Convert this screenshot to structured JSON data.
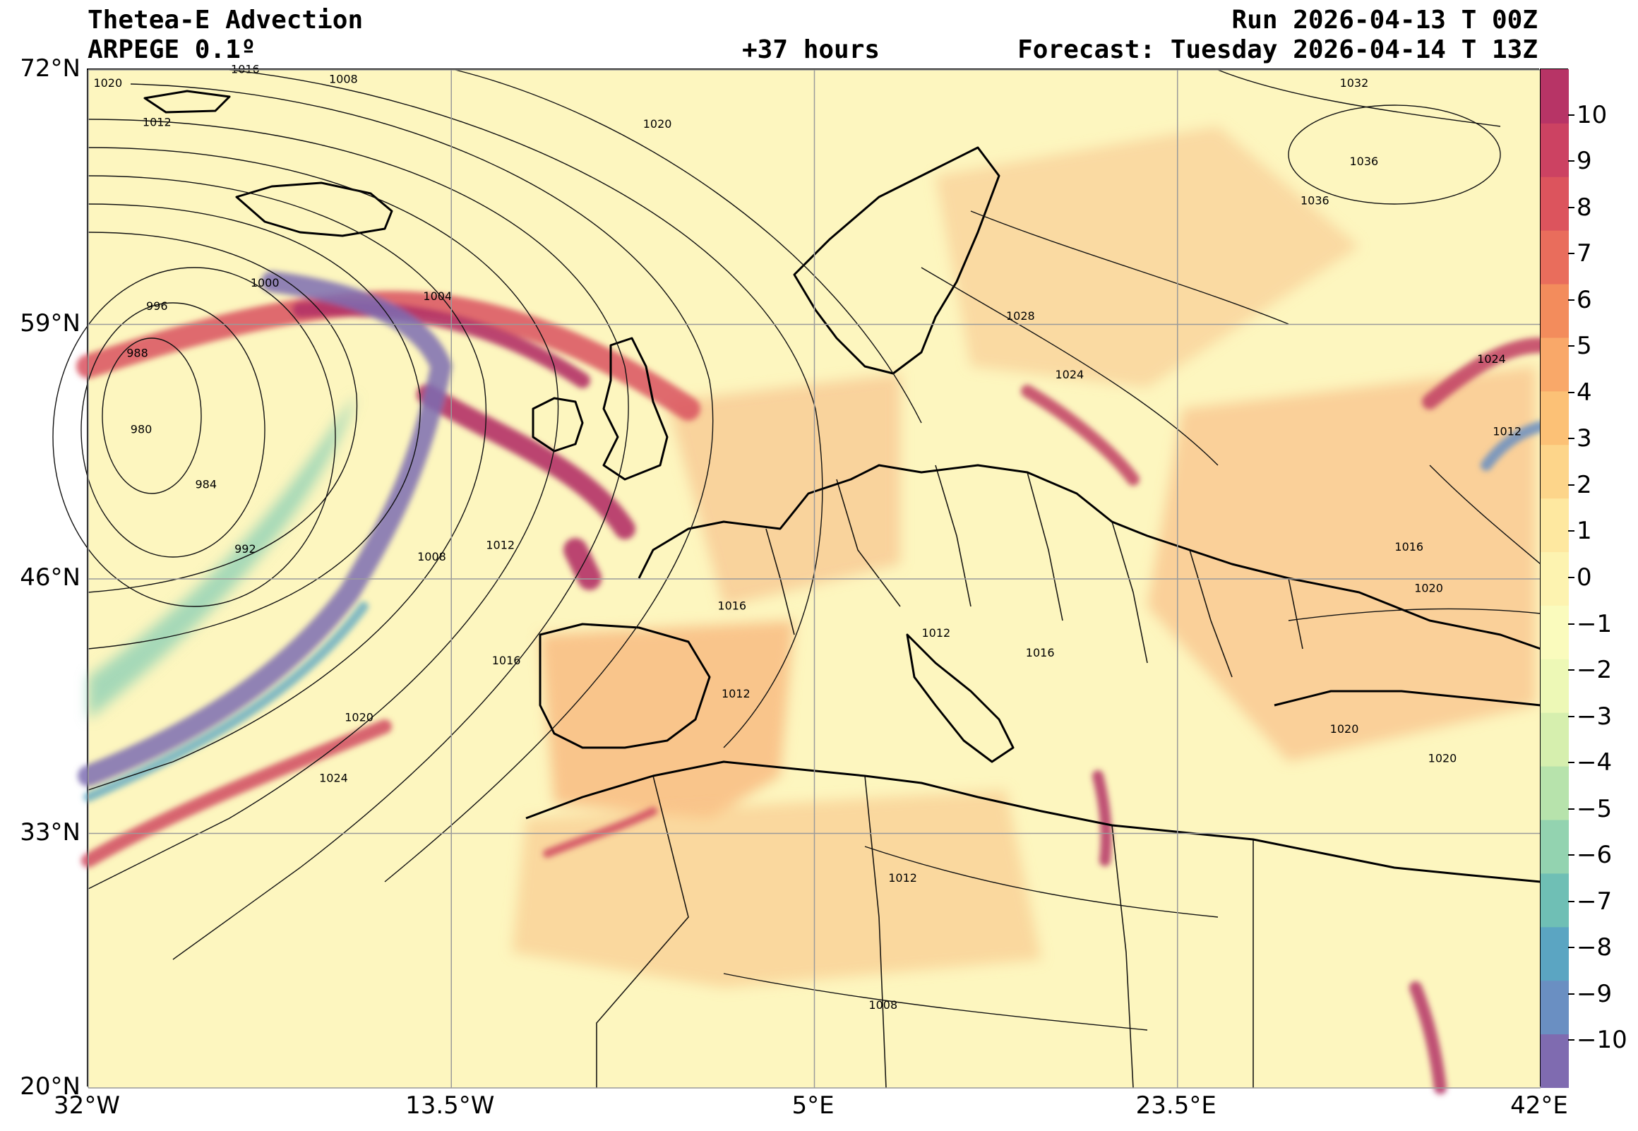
{
  "header": {
    "title": "Thetea-E Advection",
    "model": "ARPEGE 0.1º",
    "lead_time": "+37 hours",
    "run": "Run 2026-04-13 T 00Z",
    "forecast": "Forecast: Tuesday 2026-04-14 T 13Z"
  },
  "map": {
    "lon_range": [
      -32,
      42
    ],
    "lat_range": [
      20,
      72
    ],
    "lat_ticks": [
      {
        "value": 72,
        "label": "72°N"
      },
      {
        "value": 59,
        "label": "59°N"
      },
      {
        "value": 46,
        "label": "46°N"
      },
      {
        "value": 33,
        "label": "33°N"
      },
      {
        "value": 20,
        "label": "20°N"
      }
    ],
    "lon_ticks": [
      {
        "value": -32,
        "label": "32°W"
      },
      {
        "value": -13.5,
        "label": "13.5°W"
      },
      {
        "value": 5,
        "label": "5°E"
      },
      {
        "value": 23.5,
        "label": "23.5°E"
      },
      {
        "value": 42,
        "label": "42°E"
      }
    ],
    "grid": true,
    "isobar_labels": [
      {
        "text": "1020",
        "lon": -31,
        "lat": 71.3
      },
      {
        "text": "1016",
        "lon": -24,
        "lat": 72
      },
      {
        "text": "1008",
        "lon": -19,
        "lat": 71.5
      },
      {
        "text": "1012",
        "lon": -28.5,
        "lat": 69.3
      },
      {
        "text": "1020",
        "lon": -3,
        "lat": 69.2
      },
      {
        "text": "1032",
        "lon": 32.5,
        "lat": 71.3
      },
      {
        "text": "1036",
        "lon": 33,
        "lat": 67.3
      },
      {
        "text": "1036",
        "lon": 30.5,
        "lat": 65.3
      },
      {
        "text": "1000",
        "lon": -23,
        "lat": 61.1
      },
      {
        "text": "996",
        "lon": -28.5,
        "lat": 59.9
      },
      {
        "text": "1004",
        "lon": -14.2,
        "lat": 60.4
      },
      {
        "text": "1028",
        "lon": 15.5,
        "lat": 59.4
      },
      {
        "text": "988",
        "lon": -29.5,
        "lat": 57.5
      },
      {
        "text": "980",
        "lon": -29.3,
        "lat": 53.6
      },
      {
        "text": "984",
        "lon": -26,
        "lat": 50.8
      },
      {
        "text": "1024",
        "lon": 18,
        "lat": 56.4
      },
      {
        "text": "1024",
        "lon": 39.5,
        "lat": 57.2
      },
      {
        "text": "1012",
        "lon": 40.3,
        "lat": 53.5
      },
      {
        "text": "992",
        "lon": -24,
        "lat": 47.5
      },
      {
        "text": "1008",
        "lon": -14.5,
        "lat": 47.1
      },
      {
        "text": "1012",
        "lon": -11,
        "lat": 47.7
      },
      {
        "text": "1016",
        "lon": 35.3,
        "lat": 47.6
      },
      {
        "text": "1020",
        "lon": 36.3,
        "lat": 45.5
      },
      {
        "text": "1012",
        "lon": 11.2,
        "lat": 43.2
      },
      {
        "text": "1016",
        "lon": 16.5,
        "lat": 42.2
      },
      {
        "text": "1016",
        "lon": -10.7,
        "lat": 41.8
      },
      {
        "text": "1012",
        "lon": 1,
        "lat": 40.1
      },
      {
        "text": "1016",
        "lon": 0.8,
        "lat": 44.6
      },
      {
        "text": "1020",
        "lon": -18.2,
        "lat": 38.9
      },
      {
        "text": "1020",
        "lon": 32,
        "lat": 38.3
      },
      {
        "text": "1020",
        "lon": 37,
        "lat": 36.8
      },
      {
        "text": "1024",
        "lon": -19.5,
        "lat": 35.8
      },
      {
        "text": "1012",
        "lon": 9.5,
        "lat": 30.7
      },
      {
        "text": "1008",
        "lon": 8.5,
        "lat": 24.2
      }
    ]
  },
  "colorbar": {
    "range": [
      -11,
      11
    ],
    "labels": [
      "10",
      "9",
      "8",
      "7",
      "6",
      "5",
      "4",
      "3",
      "2",
      "1",
      "0",
      "−1",
      "−2",
      "−3",
      "−4",
      "−5",
      "−6",
      "−7",
      "−8",
      "−9",
      "−10"
    ],
    "label_values": [
      10,
      9,
      8,
      7,
      6,
      5,
      4,
      3,
      2,
      1,
      0,
      -1,
      -2,
      -3,
      -4,
      -5,
      -6,
      -7,
      -8,
      -9,
      -10
    ],
    "colors": [
      "#7f6bb0",
      "#6a8fc2",
      "#5ba5c2",
      "#6fbfb5",
      "#93d3b0",
      "#b7e3ac",
      "#d6efae",
      "#edf8b6",
      "#fafbbd",
      "#fdf3b0",
      "#fee8a0",
      "#fdd58a",
      "#fcc176",
      "#f9a869",
      "#f38c5c",
      "#e96d5c",
      "#dc545d",
      "#cc4262",
      "#b73466"
    ]
  }
}
